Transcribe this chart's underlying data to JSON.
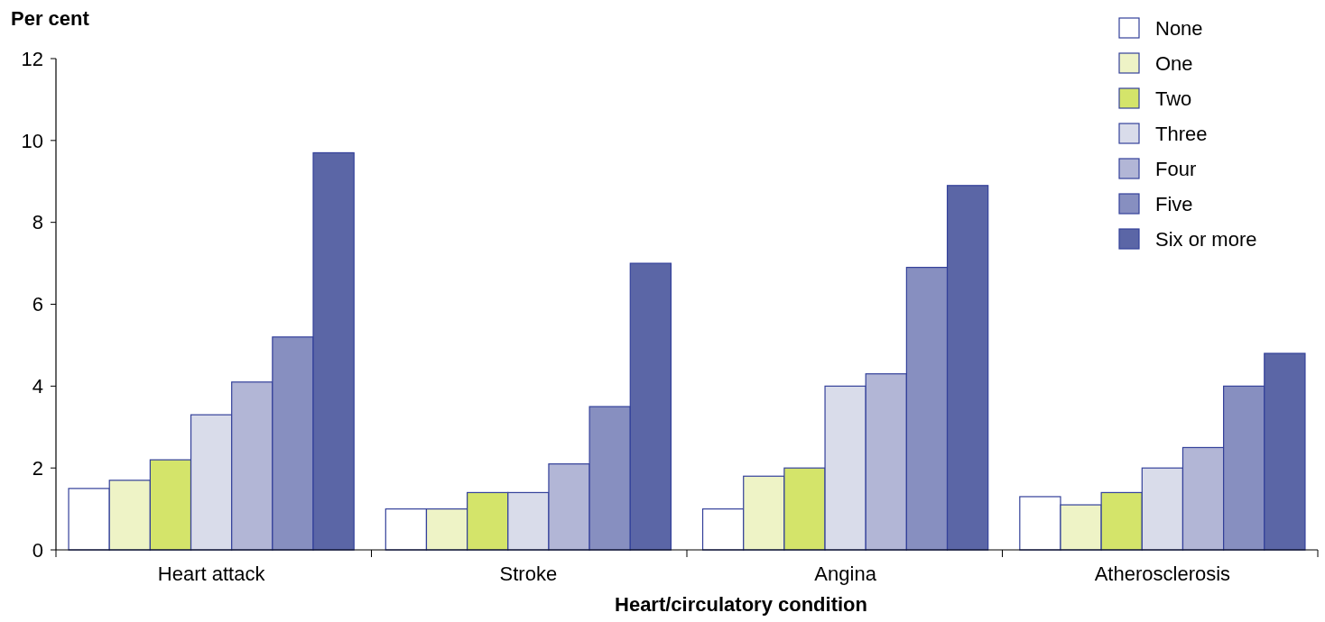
{
  "chart_data": {
    "type": "bar",
    "ylabel": "Per cent",
    "xlabel": "Heart/circulatory condition",
    "categories": [
      "Heart attack",
      "Stroke",
      "Angina",
      "Atherosclerosis"
    ],
    "series": [
      {
        "name": "None",
        "color": "#ffffff",
        "values": [
          1.5,
          1.0,
          1.0,
          1.3
        ]
      },
      {
        "name": "One",
        "color": "#eef3c6",
        "values": [
          1.7,
          1.0,
          1.8,
          1.1
        ]
      },
      {
        "name": "Two",
        "color": "#d4e46a",
        "values": [
          2.2,
          1.4,
          2.0,
          1.4
        ]
      },
      {
        "name": "Three",
        "color": "#d9dcea",
        "values": [
          3.3,
          1.4,
          4.0,
          2.0
        ]
      },
      {
        "name": "Four",
        "color": "#b2b6d6",
        "values": [
          4.1,
          2.1,
          4.3,
          2.5
        ]
      },
      {
        "name": "Five",
        "color": "#878fc0",
        "values": [
          5.2,
          3.5,
          6.9,
          4.0
        ]
      },
      {
        "name": "Six or more",
        "color": "#5b66a6",
        "values": [
          9.7,
          7.0,
          8.9,
          4.8
        ]
      }
    ],
    "ylim": [
      0,
      12
    ],
    "yticks": [
      0,
      2,
      4,
      6,
      8,
      10,
      12
    ],
    "grid": false,
    "legend": "top right"
  }
}
